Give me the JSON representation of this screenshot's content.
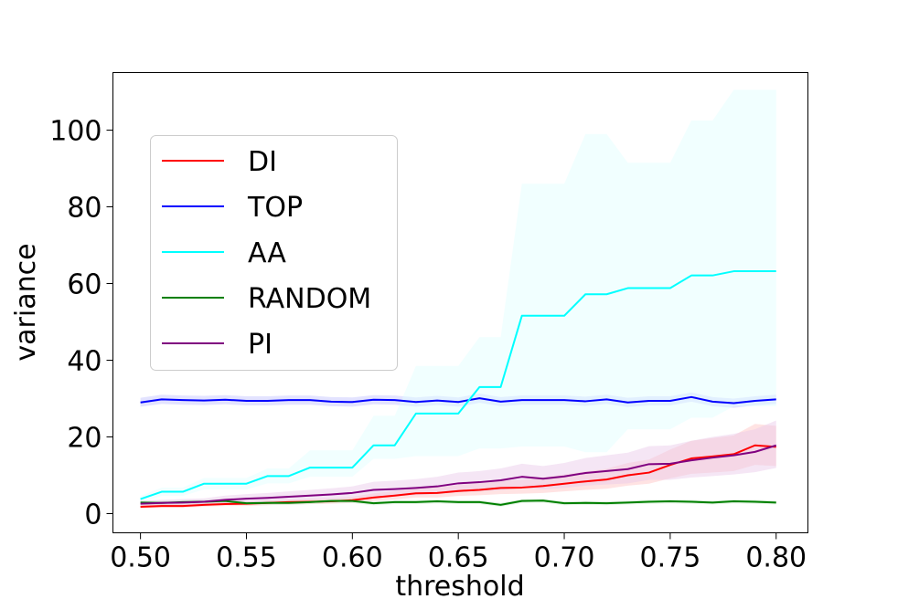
{
  "chart_data": {
    "type": "line",
    "xlabel": "threshold",
    "ylabel": "variance",
    "xlim": [
      0.487,
      0.815
    ],
    "ylim": [
      -5,
      115
    ],
    "x_ticks": [
      "0.50",
      "0.55",
      "0.60",
      "0.65",
      "0.70",
      "0.75",
      "0.80"
    ],
    "y_ticks": [
      "0",
      "20",
      "40",
      "60",
      "80",
      "100"
    ],
    "grid": false,
    "legend_position": "upper-left",
    "x": [
      0.5,
      0.51,
      0.52,
      0.53,
      0.54,
      0.55,
      0.56,
      0.57,
      0.58,
      0.59,
      0.6,
      0.61,
      0.62,
      0.63,
      0.64,
      0.65,
      0.66,
      0.67,
      0.68,
      0.69,
      0.7,
      0.71,
      0.72,
      0.73,
      0.74,
      0.75,
      0.76,
      0.77,
      0.78,
      0.79,
      0.8
    ],
    "series": [
      {
        "name": "DI",
        "color": "#ff0000",
        "band_color": "#ffc0c0",
        "values": [
          1.8,
          2.0,
          2.0,
          2.3,
          2.5,
          2.6,
          2.8,
          3.0,
          3.1,
          3.2,
          3.5,
          4.2,
          4.7,
          5.3,
          5.4,
          5.9,
          6.2,
          6.7,
          6.8,
          7.2,
          7.8,
          8.4,
          8.9,
          10.0,
          10.7,
          12.7,
          14.4,
          14.9,
          15.5,
          17.8,
          17.4
        ],
        "lower": [
          1.3,
          1.5,
          1.5,
          1.8,
          2.0,
          2.0,
          2.2,
          2.4,
          2.5,
          2.6,
          2.8,
          3.3,
          3.7,
          4.2,
          4.2,
          4.6,
          4.8,
          5.1,
          5.2,
          5.4,
          5.8,
          6.2,
          6.5,
          7.3,
          7.8,
          9.2,
          10.4,
          10.7,
          11.1,
          12.7,
          12.4
        ],
        "upper": [
          2.3,
          2.5,
          2.6,
          2.9,
          3.1,
          3.2,
          3.5,
          3.7,
          3.9,
          4.0,
          4.4,
          5.3,
          5.9,
          6.7,
          6.9,
          7.5,
          7.9,
          8.6,
          8.8,
          9.4,
          10.2,
          11.0,
          11.7,
          13.2,
          14.1,
          16.7,
          19.0,
          19.7,
          20.4,
          23.4,
          22.9
        ]
      },
      {
        "name": "TOP",
        "color": "#0000ff",
        "band_color": "#c0c0ff",
        "values": [
          29.0,
          29.8,
          29.6,
          29.5,
          29.7,
          29.4,
          29.4,
          29.6,
          29.6,
          29.2,
          29.1,
          29.7,
          29.6,
          29.1,
          29.5,
          29.1,
          30.1,
          29.2,
          29.6,
          29.6,
          29.6,
          29.3,
          29.8,
          29.0,
          29.4,
          29.4,
          30.4,
          29.2,
          28.8,
          29.4,
          29.8
        ],
        "lower": [
          27.9,
          28.6,
          28.4,
          28.3,
          28.5,
          28.2,
          28.2,
          28.4,
          28.4,
          28.0,
          27.9,
          28.5,
          28.4,
          27.9,
          28.3,
          27.9,
          28.9,
          28.0,
          28.4,
          28.4,
          28.4,
          28.1,
          28.6,
          27.8,
          28.2,
          28.2,
          29.2,
          28.0,
          27.6,
          28.2,
          28.6
        ],
        "upper": [
          30.2,
          31.0,
          30.8,
          30.7,
          30.9,
          30.6,
          30.6,
          30.8,
          30.8,
          30.4,
          30.3,
          30.9,
          30.8,
          30.3,
          30.7,
          30.3,
          31.3,
          30.4,
          30.8,
          30.8,
          30.8,
          30.5,
          31.0,
          30.2,
          30.6,
          30.6,
          31.6,
          30.4,
          30.0,
          30.6,
          31.0
        ]
      },
      {
        "name": "AA",
        "color": "#00ffff",
        "band_color": "#e0ffff",
        "values": [
          3.8,
          5.7,
          5.7,
          7.8,
          7.8,
          7.8,
          9.8,
          9.8,
          12.0,
          12.0,
          12.0,
          17.8,
          17.8,
          26.1,
          26.1,
          26.1,
          33.0,
          33.0,
          51.6,
          51.6,
          51.6,
          57.2,
          57.2,
          58.8,
          58.8,
          58.8,
          62.1,
          62.1,
          63.2,
          63.2,
          63.2
        ],
        "lower": [
          3.0,
          4.6,
          4.6,
          6.3,
          6.3,
          6.3,
          7.9,
          7.9,
          9.6,
          9.6,
          9.6,
          14.3,
          14.3,
          15.0,
          15.0,
          15.0,
          17.0,
          17.0,
          17.5,
          17.5,
          17.5,
          16.0,
          16.0,
          22.0,
          22.0,
          22.0,
          25.0,
          25.0,
          28.0,
          28.0,
          28.0
        ],
        "upper": [
          4.6,
          6.8,
          6.8,
          9.3,
          9.3,
          9.3,
          11.8,
          11.8,
          16.5,
          16.5,
          16.5,
          25.5,
          25.5,
          38.5,
          38.5,
          38.5,
          46.0,
          46.0,
          86.0,
          86.0,
          86.0,
          99.0,
          99.0,
          91.5,
          91.5,
          91.5,
          102.5,
          102.5,
          110.5,
          110.5,
          110.5
        ]
      },
      {
        "name": "RANDOM",
        "color": "#008000",
        "band_color": "#c0e0c0",
        "values": [
          2.9,
          2.8,
          3.0,
          3.1,
          3.3,
          2.7,
          2.8,
          2.8,
          3.0,
          3.3,
          3.3,
          2.7,
          3.0,
          3.0,
          3.2,
          3.0,
          3.0,
          2.3,
          3.3,
          3.4,
          2.7,
          2.8,
          2.7,
          2.9,
          3.1,
          3.2,
          3.1,
          2.9,
          3.2,
          3.1,
          2.9
        ],
        "lower": [
          2.4,
          2.3,
          2.5,
          2.6,
          2.8,
          2.2,
          2.3,
          2.3,
          2.5,
          2.8,
          2.8,
          2.2,
          2.5,
          2.5,
          2.7,
          2.5,
          2.5,
          1.8,
          2.8,
          2.9,
          2.2,
          2.3,
          2.2,
          2.4,
          2.6,
          2.7,
          2.6,
          2.4,
          2.7,
          2.6,
          2.4
        ],
        "upper": [
          3.4,
          3.3,
          3.5,
          3.6,
          3.8,
          3.2,
          3.3,
          3.3,
          3.5,
          3.8,
          3.8,
          3.2,
          3.5,
          3.5,
          3.7,
          3.5,
          3.5,
          2.8,
          3.8,
          3.9,
          3.2,
          3.3,
          3.2,
          3.4,
          3.6,
          3.7,
          3.6,
          3.4,
          3.7,
          3.6,
          3.4
        ]
      },
      {
        "name": "PI",
        "color": "#800080",
        "band_color": "#e8c8e8",
        "values": [
          2.6,
          2.8,
          2.9,
          3.1,
          3.6,
          3.9,
          4.1,
          4.4,
          4.7,
          5.0,
          5.4,
          6.2,
          6.4,
          6.7,
          7.1,
          7.9,
          8.2,
          8.7,
          9.6,
          9.1,
          9.7,
          10.6,
          11.1,
          11.6,
          12.9,
          13.0,
          13.9,
          14.6,
          15.2,
          16.1,
          17.8
        ],
        "lower": [
          2.0,
          2.1,
          2.2,
          2.4,
          2.7,
          2.9,
          3.0,
          3.3,
          3.5,
          3.7,
          4.0,
          4.5,
          4.6,
          4.8,
          5.1,
          5.6,
          5.8,
          6.1,
          6.7,
          6.3,
          6.7,
          7.3,
          7.6,
          7.9,
          8.8,
          8.8,
          9.4,
          9.8,
          10.2,
          10.8,
          11.9
        ],
        "upper": [
          3.3,
          3.6,
          3.8,
          4.0,
          4.7,
          5.1,
          5.4,
          5.8,
          6.2,
          6.6,
          7.1,
          8.3,
          8.6,
          9.0,
          9.6,
          10.7,
          11.1,
          11.8,
          13.0,
          12.4,
          13.2,
          14.5,
          15.2,
          15.9,
          17.6,
          17.8,
          19.0,
          20.0,
          20.8,
          22.0,
          24.3
        ]
      }
    ]
  }
}
